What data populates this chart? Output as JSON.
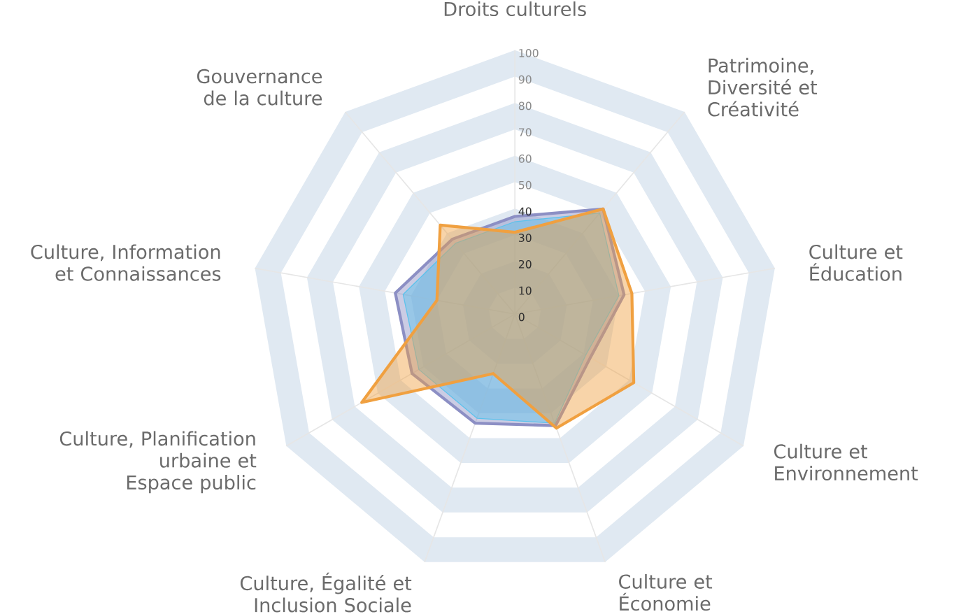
{
  "chart_data": {
    "type": "radar",
    "categories": [
      "Droits culturels",
      "Patrimoine, Diversité et Créativité",
      "Culture et Éducation",
      "Culture et Environnement",
      "Culture et Économie",
      "Culture, Égalité et Inclusion Sociale",
      "Culture, Planification urbaine et Espace public",
      "Culture, Information et Connaissances",
      "Gouvernance de la culture"
    ],
    "series": [
      {
        "color": "#8c8fc4",
        "values": [
          37,
          52,
          42,
          33,
          45,
          44,
          45,
          46,
          37
        ]
      },
      {
        "color": "#5bc2ec",
        "values": [
          35,
          50,
          40,
          31,
          44,
          42,
          42,
          43,
          35
        ]
      },
      {
        "color": "#f0a040",
        "values": [
          31,
          52,
          45,
          52,
          46,
          24,
          67,
          30,
          44
        ]
      }
    ],
    "ylim": [
      0,
      100
    ],
    "yticks": [
      0,
      10,
      20,
      30,
      40,
      50,
      60,
      70,
      80,
      90,
      100
    ],
    "grid": true
  }
}
